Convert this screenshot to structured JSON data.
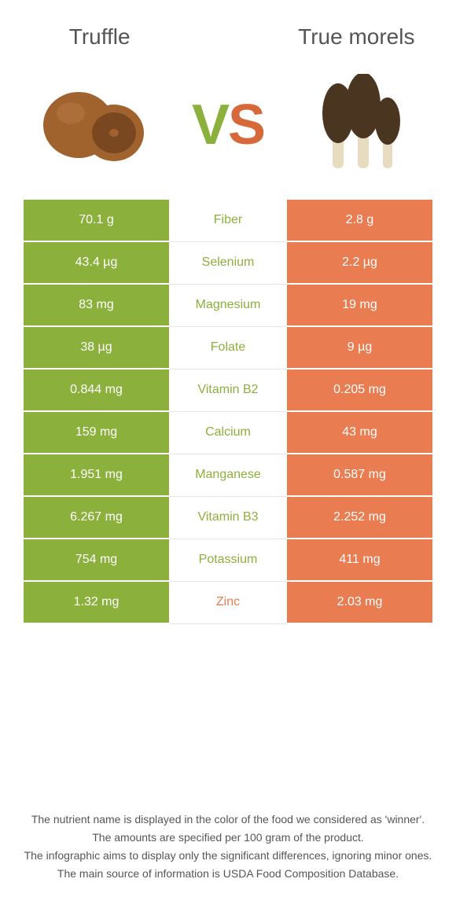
{
  "header": {
    "left_title": "Truffle",
    "right_title": "True morels",
    "vs_v": "V",
    "vs_s": "S"
  },
  "colors": {
    "green": "#8bb03c",
    "orange": "#e97c51",
    "orange_text": "#d6683a"
  },
  "rows": [
    {
      "left": "70.1 g",
      "label": "Fiber",
      "right": "2.8 g",
      "winner": "left"
    },
    {
      "left": "43.4 µg",
      "label": "Selenium",
      "right": "2.2 µg",
      "winner": "left"
    },
    {
      "left": "83 mg",
      "label": "Magnesium",
      "right": "19 mg",
      "winner": "left"
    },
    {
      "left": "38 µg",
      "label": "Folate",
      "right": "9 µg",
      "winner": "left"
    },
    {
      "left": "0.844 mg",
      "label": "Vitamin B2",
      "right": "0.205 mg",
      "winner": "left"
    },
    {
      "left": "159 mg",
      "label": "Calcium",
      "right": "43 mg",
      "winner": "left"
    },
    {
      "left": "1.951 mg",
      "label": "Manganese",
      "right": "0.587 mg",
      "winner": "left"
    },
    {
      "left": "6.267 mg",
      "label": "Vitamin B3",
      "right": "2.252 mg",
      "winner": "left"
    },
    {
      "left": "754 mg",
      "label": "Potassium",
      "right": "411 mg",
      "winner": "left"
    },
    {
      "left": "1.32 mg",
      "label": "Zinc",
      "right": "2.03 mg",
      "winner": "right"
    }
  ],
  "footer": {
    "line1": "The nutrient name is displayed in the color of the food we considered as 'winner'.",
    "line2": "The amounts are specified per 100 gram of the product.",
    "line3": "The infographic aims to display only the significant differences, ignoring minor ones.",
    "line4": "The main source of information is USDA Food Composition Database."
  }
}
